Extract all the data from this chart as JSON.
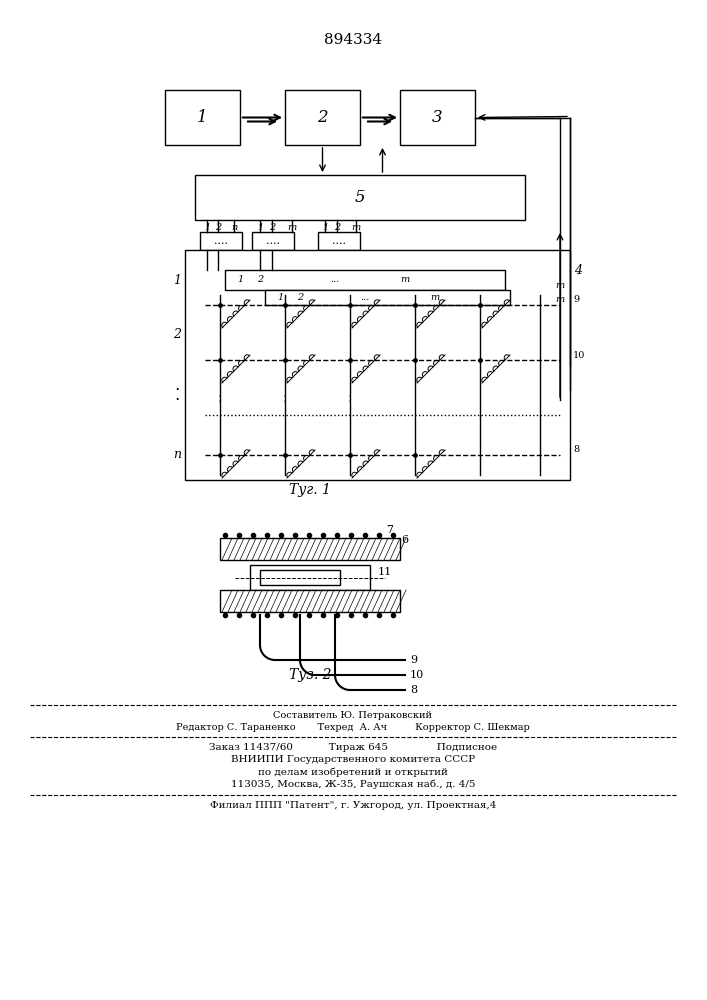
{
  "title": "894334",
  "title_fontsize": 11,
  "fig1_caption": "Τуг. 1",
  "fig2_caption": "Τуз. 2",
  "bg_color": "#ffffff",
  "line_color": "#000000",
  "box_labels": [
    "1",
    "2",
    "3"
  ],
  "block5_label": "5",
  "footer_lines": [
    "Составитель Ю. Петраковский",
    "Редактор С. Тараненко       Техред  А. Ач         Корректор С. Шекмар",
    "Заказ 11437/60           Тираж 645               Подписное",
    "ВНИИПИ Государственного комитета СССР",
    "по делам изобретений и открытий",
    "113035, Москва, Ж-35, Раушская наб., д. 4/5",
    "Филиал ППП \"Патент\", г. Ужгород, ул. Проектная,4"
  ]
}
